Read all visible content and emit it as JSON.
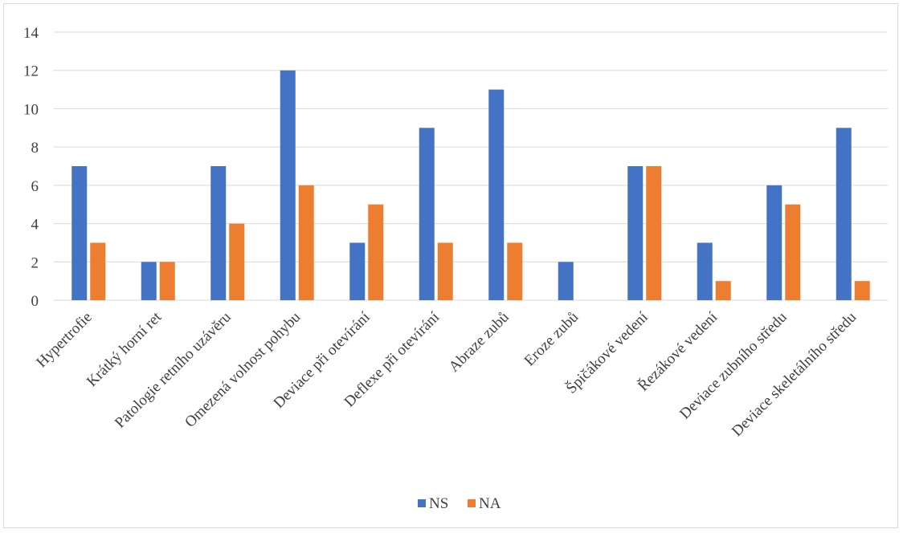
{
  "chart_data": {
    "type": "bar",
    "categories": [
      "Hypertrofie",
      "Krátký horní ret",
      "Patologie retního uzávěru",
      "Omezená volnost pohybu",
      "Deviace při otevírání",
      "Deflexe při otevírání",
      "Abraze zubů",
      "Eroze zubů",
      "Špičákové vedení",
      "Řezákové vedení",
      "Deviace zubního středu",
      "Deviace skeletálního středu"
    ],
    "series": [
      {
        "name": "NS",
        "color": "#4472c4",
        "values": [
          7,
          2,
          7,
          12,
          3,
          9,
          11,
          2,
          7,
          3,
          6,
          9
        ]
      },
      {
        "name": "NA",
        "color": "#ed7d31",
        "values": [
          3,
          2,
          4,
          6,
          5,
          3,
          3,
          0,
          7,
          1,
          5,
          1
        ]
      }
    ],
    "ylim": [
      0,
      14
    ],
    "yticks": [
      0,
      2,
      4,
      6,
      8,
      10,
      12,
      14
    ],
    "grid": true,
    "legend_position": "bottom",
    "title": "",
    "xlabel": "",
    "ylabel": ""
  }
}
